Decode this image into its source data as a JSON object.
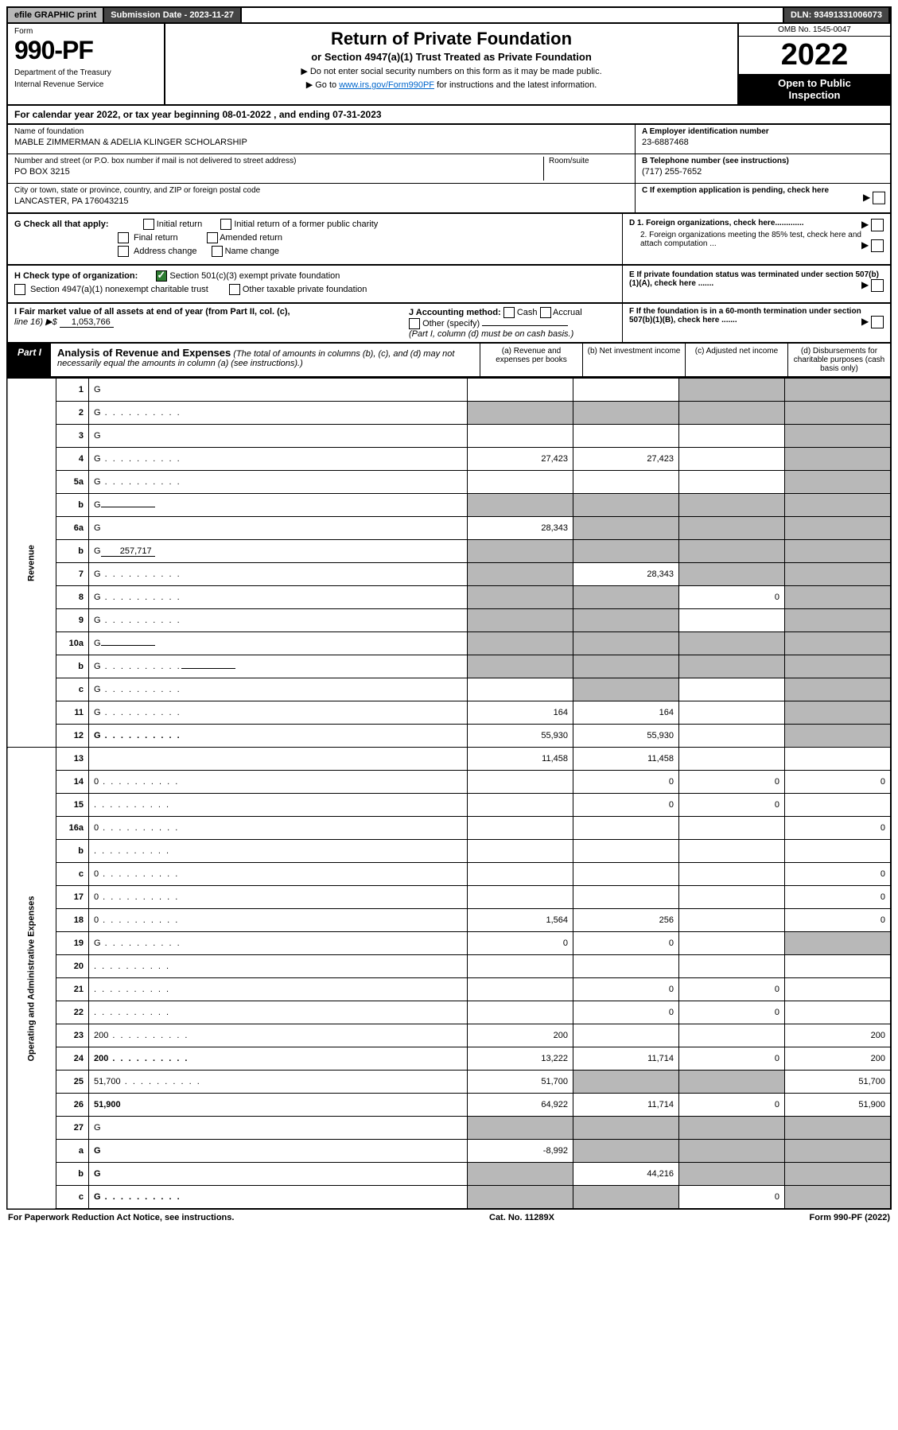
{
  "topbar": {
    "efile": "efile GRAPHIC print",
    "submission": "Submission Date - 2023-11-27",
    "dln": "DLN: 93491331006073"
  },
  "header": {
    "form_label": "Form",
    "form_number": "990-PF",
    "dept1": "Department of the Treasury",
    "dept2": "Internal Revenue Service",
    "title": "Return of Private Foundation",
    "subtitle": "or Section 4947(a)(1) Trust Treated as Private Foundation",
    "note1": "▶ Do not enter social security numbers on this form as it may be made public.",
    "note2_pre": "▶ Go to ",
    "note2_link": "www.irs.gov/Form990PF",
    "note2_post": " for instructions and the latest information.",
    "omb": "OMB No. 1545-0047",
    "year": "2022",
    "open1": "Open to Public",
    "open2": "Inspection"
  },
  "calendar": "For calendar year 2022, or tax year beginning 08-01-2022              , and ending 07-31-2023",
  "info": {
    "name_label": "Name of foundation",
    "name": "MABLE ZIMMERMAN & ADELIA KLINGER SCHOLARSHIP",
    "addr_label": "Number and street (or P.O. box number if mail is not delivered to street address)",
    "addr": "PO BOX 3215",
    "room_label": "Room/suite",
    "city_label": "City or town, state or province, country, and ZIP or foreign postal code",
    "city": "LANCASTER, PA  176043215",
    "a_label": "A Employer identification number",
    "a_val": "23-6887468",
    "b_label": "B Telephone number (see instructions)",
    "b_val": "(717) 255-7652",
    "c_label": "C If exemption application is pending, check here",
    "d1": "D 1. Foreign organizations, check here.............",
    "d2": "2. Foreign organizations meeting the 85% test, check here and attach computation ...",
    "e": "E  If private foundation status was terminated under section 507(b)(1)(A), check here .......",
    "f": "F  If the foundation is in a 60-month termination under section 507(b)(1)(B), check here .......",
    "g_label": "G Check all that apply:",
    "g_opts": [
      "Initial return",
      "Initial return of a former public charity",
      "Final return",
      "Amended return",
      "Address change",
      "Name change"
    ],
    "h_label": "H Check type of organization:",
    "h_opt1": "Section 501(c)(3) exempt private foundation",
    "h_opt2": "Section 4947(a)(1) nonexempt charitable trust",
    "h_opt3": "Other taxable private foundation",
    "i_label": "I Fair market value of all assets at end of year (from Part II, col. (c),",
    "i_line": "line 16) ▶$",
    "i_val": "1,053,766",
    "j_label": "J Accounting method:",
    "j_cash": "Cash",
    "j_accrual": "Accrual",
    "j_other": "Other (specify)",
    "j_note": "(Part I, column (d) must be on cash basis.)"
  },
  "part1": {
    "label": "Part I",
    "title": "Analysis of Revenue and Expenses",
    "note": " (The total of amounts in columns (b), (c), and (d) may not necessarily equal the amounts in column (a) (see instructions).)",
    "col_a": "(a)   Revenue and expenses per books",
    "col_b": "(b)   Net investment income",
    "col_c": "(c)   Adjusted net income",
    "col_d": "(d)  Disbursements for charitable purposes (cash basis only)"
  },
  "side": {
    "revenue": "Revenue",
    "expenses": "Operating and Administrative Expenses"
  },
  "rows": [
    {
      "n": "1",
      "d": "G",
      "a": "",
      "b": "",
      "c": "G"
    },
    {
      "n": "2",
      "d": "G",
      "dots": true,
      "a": "G",
      "b": "G",
      "c": "G"
    },
    {
      "n": "3",
      "d": "G",
      "a": "",
      "b": "",
      "c": ""
    },
    {
      "n": "4",
      "d": "G",
      "dots": true,
      "a": "27,423",
      "b": "27,423",
      "c": ""
    },
    {
      "n": "5a",
      "d": "G",
      "dots": true,
      "a": "",
      "b": "",
      "c": ""
    },
    {
      "n": "b",
      "d": "G",
      "inline": true,
      "a": "G",
      "b": "G",
      "c": "G"
    },
    {
      "n": "6a",
      "d": "G",
      "a": "28,343",
      "b": "G",
      "c": "G"
    },
    {
      "n": "b",
      "d": "G",
      "inline": true,
      "inlineval": "257,717",
      "a": "G",
      "b": "G",
      "c": "G"
    },
    {
      "n": "7",
      "d": "G",
      "dots": true,
      "a": "G",
      "b": "28,343",
      "c": "G"
    },
    {
      "n": "8",
      "d": "G",
      "dots": true,
      "a": "G",
      "b": "G",
      "c": "0"
    },
    {
      "n": "9",
      "d": "G",
      "dots": true,
      "a": "G",
      "b": "G",
      "c": ""
    },
    {
      "n": "10a",
      "d": "G",
      "inline": true,
      "a": "G",
      "b": "G",
      "c": "G"
    },
    {
      "n": "b",
      "d": "G",
      "dots": true,
      "inline": true,
      "a": "G",
      "b": "G",
      "c": "G"
    },
    {
      "n": "c",
      "d": "G",
      "dots": true,
      "a": "",
      "b": "G",
      "c": ""
    },
    {
      "n": "11",
      "d": "G",
      "dots": true,
      "a": "164",
      "b": "164",
      "c": ""
    },
    {
      "n": "12",
      "d": "G",
      "bold": true,
      "dots": true,
      "a": "55,930",
      "b": "55,930",
      "c": ""
    },
    {
      "n": "13",
      "d": "",
      "a": "11,458",
      "b": "11,458",
      "c": ""
    },
    {
      "n": "14",
      "d": "0",
      "dots": true,
      "a": "",
      "b": "0",
      "c": "0"
    },
    {
      "n": "15",
      "d": "",
      "dots": true,
      "a": "",
      "b": "0",
      "c": "0"
    },
    {
      "n": "16a",
      "d": "0",
      "dots": true,
      "a": "",
      "b": "",
      "c": ""
    },
    {
      "n": "b",
      "d": "",
      "dots": true,
      "a": "",
      "b": "",
      "c": ""
    },
    {
      "n": "c",
      "d": "0",
      "dots": true,
      "a": "",
      "b": "",
      "c": ""
    },
    {
      "n": "17",
      "d": "0",
      "dots": true,
      "a": "",
      "b": "",
      "c": ""
    },
    {
      "n": "18",
      "d": "0",
      "dots": true,
      "a": "1,564",
      "b": "256",
      "c": ""
    },
    {
      "n": "19",
      "d": "G",
      "dots": true,
      "a": "0",
      "b": "0",
      "c": ""
    },
    {
      "n": "20",
      "d": "",
      "dots": true,
      "a": "",
      "b": "",
      "c": ""
    },
    {
      "n": "21",
      "d": "",
      "dots": true,
      "a": "",
      "b": "0",
      "c": "0"
    },
    {
      "n": "22",
      "d": "",
      "dots": true,
      "a": "",
      "b": "0",
      "c": "0"
    },
    {
      "n": "23",
      "d": "200",
      "dots": true,
      "a": "200",
      "b": "",
      "c": ""
    },
    {
      "n": "24",
      "d": "200",
      "bold": true,
      "dots": true,
      "a": "13,222",
      "b": "11,714",
      "c": "0"
    },
    {
      "n": "25",
      "d": "51,700",
      "dots": true,
      "a": "51,700",
      "b": "G",
      "c": "G"
    },
    {
      "n": "26",
      "d": "51,900",
      "bold": true,
      "a": "64,922",
      "b": "11,714",
      "c": "0"
    },
    {
      "n": "27",
      "d": "G",
      "a": "G",
      "b": "G",
      "c": "G"
    },
    {
      "n": "a",
      "d": "G",
      "bold": true,
      "a": "-8,992",
      "b": "G",
      "c": "G"
    },
    {
      "n": "b",
      "d": "G",
      "bold": true,
      "a": "G",
      "b": "44,216",
      "c": "G"
    },
    {
      "n": "c",
      "d": "G",
      "bold": true,
      "dots": true,
      "a": "G",
      "b": "G",
      "c": "0"
    }
  ],
  "footer": {
    "left": "For Paperwork Reduction Act Notice, see instructions.",
    "center": "Cat. No. 11289X",
    "right": "Form 990-PF (2022)"
  }
}
